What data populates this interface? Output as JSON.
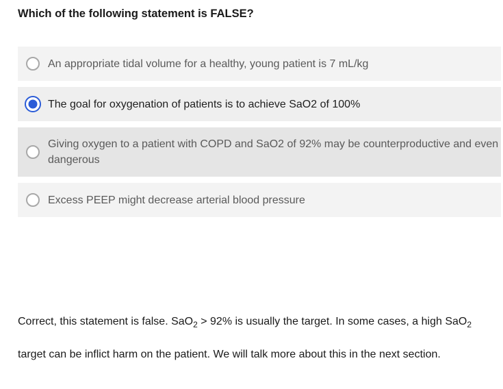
{
  "question": {
    "text": "Which of the following statement is FALSE?"
  },
  "options": [
    {
      "text": "An appropriate tidal volume for a healthy, young patient is 7 mL/kg",
      "selected": false
    },
    {
      "text": "The goal for oxygenation of patients is to achieve SaO2 of 100%",
      "selected": true
    },
    {
      "text": "Giving oxygen to a patient with COPD and SaO2 of 92% may be counterproductive and even dangerous",
      "selected": false
    },
    {
      "text": "Excess PEEP might decrease arterial blood pressure",
      "selected": false
    }
  ],
  "feedback": {
    "part1": "Correct, this statement is false.  SaO",
    "sub1": "2",
    "part2": " > 92% is usually the target.  In some cases, a high SaO",
    "sub2": "2",
    "part3": " target can be inflict harm on the patient.  We will talk more about this in the next section."
  },
  "colors": {
    "accent": "#2a5bd7",
    "option_bg": "#f3f3f3",
    "option_hover_bg": "#e5e5e5"
  }
}
